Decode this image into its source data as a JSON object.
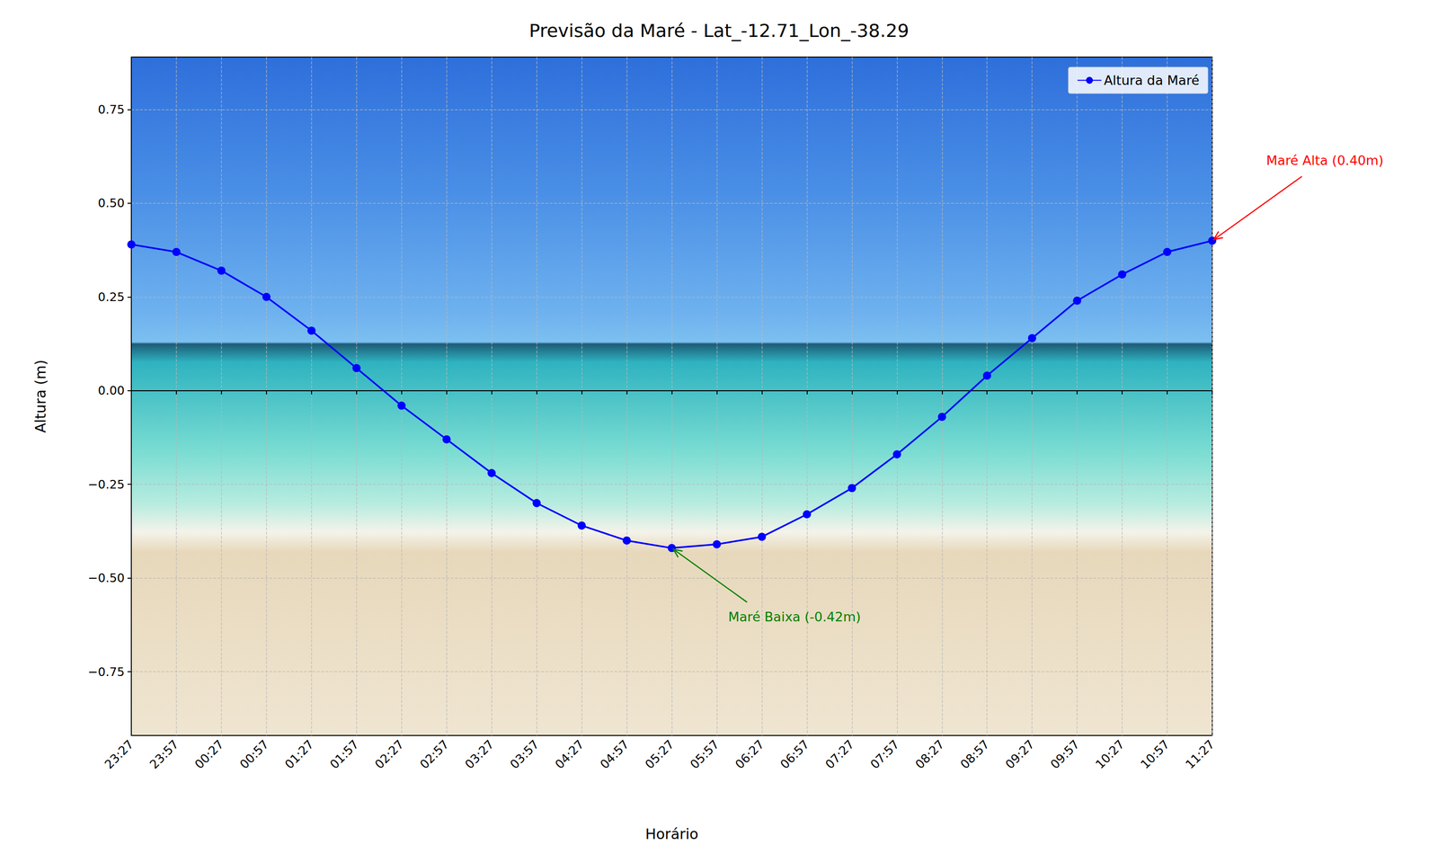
{
  "chart_data": {
    "type": "line",
    "title": "Previsão da Maré - Lat_-12.71_Lon_-38.29",
    "x_label": "Horário",
    "y_label": "Altura (m)",
    "categories": [
      "23:27",
      "23:57",
      "00:27",
      "00:57",
      "01:27",
      "01:57",
      "02:27",
      "02:57",
      "03:27",
      "03:57",
      "04:27",
      "04:57",
      "05:27",
      "05:57",
      "06:27",
      "06:57",
      "07:27",
      "07:57",
      "08:27",
      "08:57",
      "09:27",
      "09:57",
      "10:27",
      "10:57",
      "11:27"
    ],
    "series": [
      {
        "name": "Altura da Maré",
        "color": "#0000ff",
        "marker": "circle",
        "line_style": "solid",
        "values": [
          0.39,
          0.37,
          0.32,
          0.25,
          0.16,
          0.06,
          -0.04,
          -0.13,
          -0.22,
          -0.3,
          -0.36,
          -0.4,
          -0.42,
          -0.41,
          -0.39,
          -0.33,
          -0.26,
          -0.17,
          -0.07,
          0.04,
          0.14,
          0.24,
          0.31,
          0.37,
          0.4
        ]
      }
    ],
    "ylim": [
      -0.92,
      0.89
    ],
    "yticks": [
      {
        "value": -0.75,
        "label": "−0.75"
      },
      {
        "value": -0.5,
        "label": "−0.50"
      },
      {
        "value": -0.25,
        "label": "−0.25"
      },
      {
        "value": 0,
        "label": "0.00"
      },
      {
        "value": 0.25,
        "label": "0.25"
      },
      {
        "value": 0.5,
        "label": "0.50"
      },
      {
        "value": 0.75,
        "label": "0.75"
      }
    ],
    "grid": true,
    "legend": "upper right",
    "annotations": [
      {
        "text": "Maré Alta (0.40m)",
        "x": "11:27",
        "y": 0.4,
        "color": "#ff0000"
      },
      {
        "text": "Maré Baixa (-0.42m)",
        "x": "05:27",
        "y": -0.42,
        "color": "#008000"
      }
    ]
  }
}
